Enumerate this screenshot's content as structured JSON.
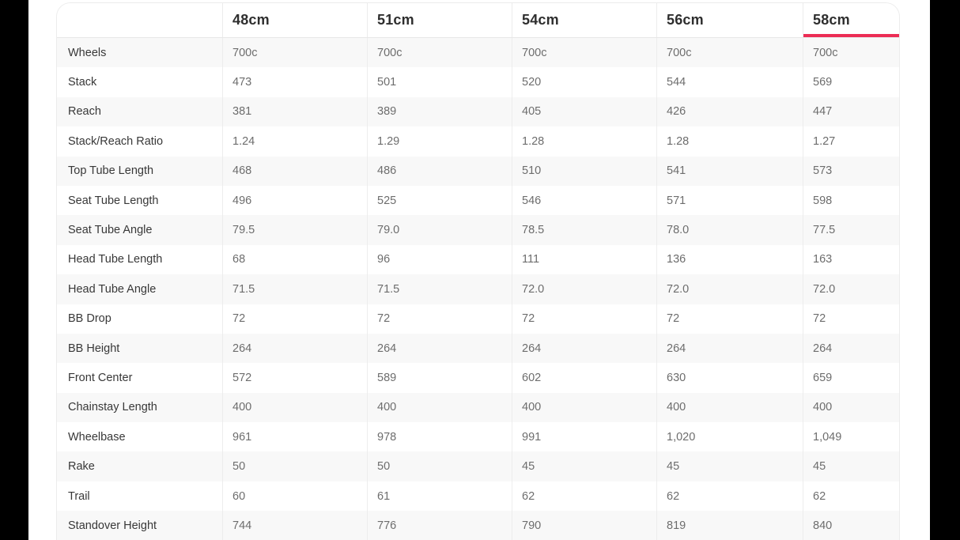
{
  "frame": {
    "letterbox_color": "#000000",
    "canvas_color": "#FFFFFF"
  },
  "table": {
    "accent_color": "#EC2D55",
    "stripe_color": "#F8F8F8",
    "border_color": "#ECECEC",
    "corner_header": "",
    "columns": [
      "48cm",
      "51cm",
      "54cm",
      "56cm",
      "58cm"
    ],
    "selected_column": "58cm",
    "selected_column_index": 4,
    "rows": [
      {
        "label": "Wheels",
        "values": [
          "700c",
          "700c",
          "700c",
          "700c",
          "700c"
        ]
      },
      {
        "label": "Stack",
        "values": [
          "473",
          "501",
          "520",
          "544",
          "569"
        ]
      },
      {
        "label": "Reach",
        "values": [
          "381",
          "389",
          "405",
          "426",
          "447"
        ]
      },
      {
        "label": "Stack/Reach Ratio",
        "values": [
          "1.24",
          "1.29",
          "1.28",
          "1.28",
          "1.27"
        ]
      },
      {
        "label": "Top Tube Length",
        "values": [
          "468",
          "486",
          "510",
          "541",
          "573"
        ]
      },
      {
        "label": "Seat Tube Length",
        "values": [
          "496",
          "525",
          "546",
          "571",
          "598"
        ]
      },
      {
        "label": "Seat Tube Angle",
        "values": [
          "79.5",
          "79.0",
          "78.5",
          "78.0",
          "77.5"
        ]
      },
      {
        "label": "Head Tube Length",
        "values": [
          "68",
          "96",
          "111",
          "136",
          "163"
        ]
      },
      {
        "label": "Head Tube Angle",
        "values": [
          "71.5",
          "71.5",
          "72.0",
          "72.0",
          "72.0"
        ]
      },
      {
        "label": "BB Drop",
        "values": [
          "72",
          "72",
          "72",
          "72",
          "72"
        ]
      },
      {
        "label": "BB Height",
        "values": [
          "264",
          "264",
          "264",
          "264",
          "264"
        ]
      },
      {
        "label": "Front Center",
        "values": [
          "572",
          "589",
          "602",
          "630",
          "659"
        ]
      },
      {
        "label": "Chainstay Length",
        "values": [
          "400",
          "400",
          "400",
          "400",
          "400"
        ]
      },
      {
        "label": "Wheelbase",
        "values": [
          "961",
          "978",
          "991",
          "1,020",
          "1,049"
        ]
      },
      {
        "label": "Rake",
        "values": [
          "50",
          "50",
          "45",
          "45",
          "45"
        ]
      },
      {
        "label": "Trail",
        "values": [
          "60",
          "61",
          "62",
          "62",
          "62"
        ]
      },
      {
        "label": "Standover Height",
        "values": [
          "744",
          "776",
          "790",
          "819",
          "840"
        ]
      }
    ]
  }
}
